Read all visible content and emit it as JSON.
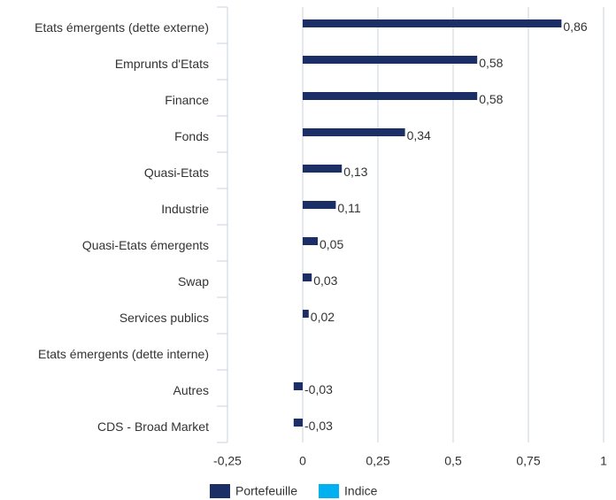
{
  "chart_data": {
    "type": "hbar",
    "categories": [
      "Etats émergents (dette externe)",
      "Emprunts d'Etats",
      "Finance",
      "Fonds",
      "Quasi-Etats",
      "Industrie",
      "Quasi-Etats émergents",
      "Swap",
      "Services publics",
      "Etats émergents (dette interne)",
      "Autres",
      "CDS - Broad Market"
    ],
    "series": [
      {
        "name": "Portefeuille",
        "color": "#1b2f66",
        "values": [
          0.86,
          0.58,
          0.58,
          0.34,
          0.13,
          0.11,
          0.05,
          0.03,
          0.02,
          null,
          -0.03,
          -0.03
        ],
        "value_labels": [
          "0,86",
          "0,58",
          "0,58",
          "0,34",
          "0,13",
          "0,11",
          "0,05",
          "0,03",
          "0,02",
          null,
          "-0,03",
          "-0,03"
        ]
      },
      {
        "name": "Indice",
        "color": "#00b0f0",
        "values": [
          null,
          null,
          null,
          null,
          null,
          null,
          null,
          null,
          null,
          null,
          null,
          null
        ]
      }
    ],
    "xlim": [
      -0.25,
      1
    ],
    "xticks": [
      {
        "value": -0.25,
        "label": "-0,25"
      },
      0,
      {
        "value": 0.25,
        "label": "0,25"
      },
      {
        "value": 0.5,
        "label": "0,5"
      },
      {
        "value": 0.75,
        "label": "0,75"
      },
      1
    ],
    "grid": true,
    "legend": "bottom"
  }
}
